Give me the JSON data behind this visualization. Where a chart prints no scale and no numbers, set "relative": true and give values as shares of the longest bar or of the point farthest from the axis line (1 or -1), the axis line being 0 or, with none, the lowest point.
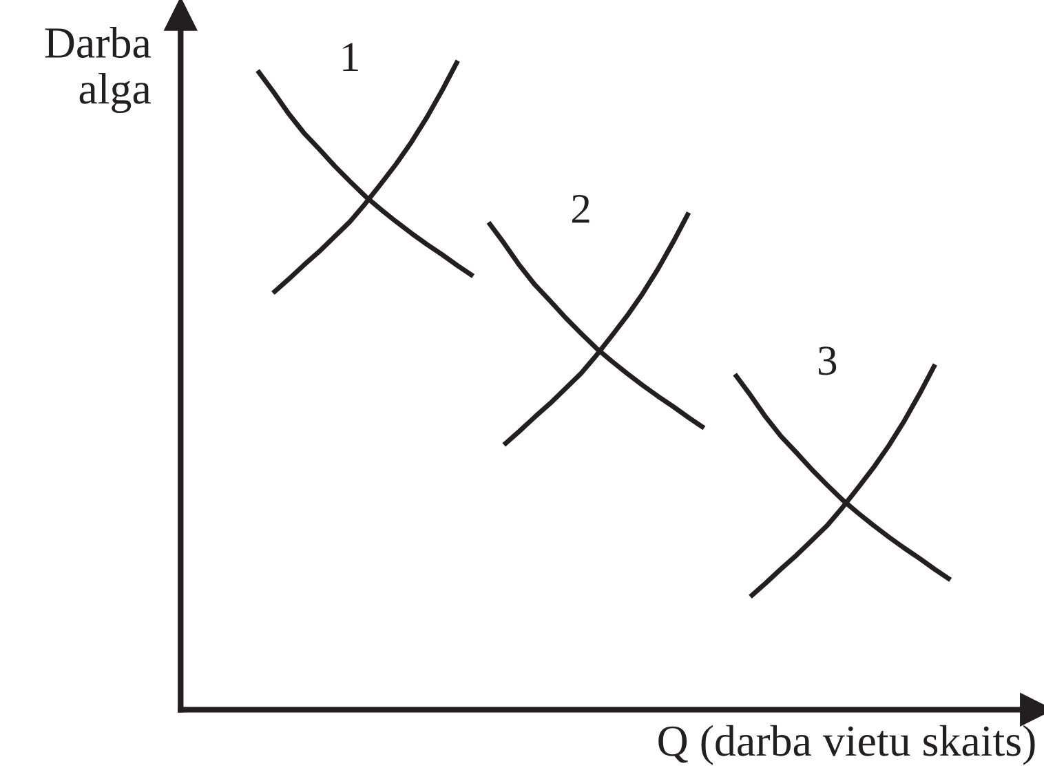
{
  "chart_data": {
    "type": "line",
    "relative": true,
    "xlabel": "Q (darba vietu skaits)",
    "ylabel": "Darba\nalga",
    "grid": false,
    "legend": false,
    "marker": "none",
    "line_style": "solid",
    "categories": [
      null,
      null,
      null,
      null,
      null,
      null,
      null,
      null,
      null,
      null,
      null,
      null,
      null,
      null,
      null,
      null,
      null,
      null,
      null,
      null,
      null,
      null,
      null,
      null,
      null,
      null,
      null,
      null,
      null,
      null,
      null,
      null,
      null,
      null,
      null,
      null,
      null,
      null,
      null,
      null,
      null,
      null,
      null,
      null,
      null,
      null,
      null,
      null,
      null,
      null
    ],
    "series": [
      {
        "color": "#231f20",
        "values": [
          null,
          null,
          null,
          null,
          0.985,
          0.953,
          0.919,
          0.889,
          0.864,
          0.838,
          0.814,
          0.791,
          0.771,
          0.752,
          0.734,
          0.717,
          0.701,
          0.684,
          0.668,
          null,
          null,
          null,
          null,
          null,
          null,
          null,
          null,
          null,
          null,
          null,
          null,
          null,
          null,
          null,
          null,
          null,
          null,
          null,
          null,
          null,
          null,
          null,
          null,
          null,
          null,
          null,
          null,
          null,
          null,
          null
        ]
      },
      {
        "color": "#231f20",
        "values": [
          null,
          null,
          null,
          null,
          null,
          0.642,
          0.663,
          0.685,
          0.706,
          0.729,
          0.752,
          0.78,
          0.81,
          0.841,
          0.875,
          0.913,
          0.955,
          1.0,
          null,
          null,
          null,
          null,
          null,
          null,
          null,
          null,
          null,
          null,
          null,
          null,
          null,
          null,
          null,
          null,
          null,
          null,
          null,
          null,
          null,
          null,
          null,
          null,
          null,
          null,
          null,
          null,
          null,
          null,
          null,
          null
        ]
      },
      {
        "color": "#231f20",
        "values": [
          null,
          null,
          null,
          null,
          null,
          null,
          null,
          null,
          null,
          null,
          null,
          null,
          null,
          null,
          null,
          null,
          null,
          null,
          null,
          0.751,
          0.719,
          0.685,
          0.655,
          0.63,
          0.604,
          0.58,
          0.557,
          0.537,
          0.518,
          0.5,
          0.483,
          0.467,
          0.45,
          0.434,
          null,
          null,
          null,
          null,
          null,
          null,
          null,
          null,
          null,
          null,
          null,
          null,
          null,
          null,
          null,
          null
        ]
      },
      {
        "color": "#231f20",
        "values": [
          null,
          null,
          null,
          null,
          null,
          null,
          null,
          null,
          null,
          null,
          null,
          null,
          null,
          null,
          null,
          null,
          null,
          null,
          null,
          null,
          0.408,
          0.429,
          0.451,
          0.472,
          0.495,
          0.518,
          0.546,
          0.576,
          0.607,
          0.641,
          0.679,
          0.721,
          0.766,
          null,
          null,
          null,
          null,
          null,
          null,
          null,
          null,
          null,
          null,
          null,
          null,
          null,
          null,
          null,
          null,
          null
        ]
      },
      {
        "color": "#231f20",
        "values": [
          null,
          null,
          null,
          null,
          null,
          null,
          null,
          null,
          null,
          null,
          null,
          null,
          null,
          null,
          null,
          null,
          null,
          null,
          null,
          null,
          null,
          null,
          null,
          null,
          null,
          null,
          null,
          null,
          null,
          null,
          null,
          null,
          null,
          null,
          null,
          0.517,
          0.485,
          0.451,
          0.421,
          0.396,
          0.37,
          0.346,
          0.323,
          0.303,
          0.284,
          0.266,
          0.249,
          0.233,
          0.216,
          0.2
        ]
      },
      {
        "color": "#231f20",
        "values": [
          null,
          null,
          null,
          null,
          null,
          null,
          null,
          null,
          null,
          null,
          null,
          null,
          null,
          null,
          null,
          null,
          null,
          null,
          null,
          null,
          null,
          null,
          null,
          null,
          null,
          null,
          null,
          null,
          null,
          null,
          null,
          null,
          null,
          null,
          null,
          null,
          0.174,
          0.195,
          0.217,
          0.238,
          0.261,
          0.284,
          0.312,
          0.342,
          0.373,
          0.407,
          0.445,
          0.487,
          0.532,
          null
        ]
      }
    ],
    "annotations": [
      "1",
      "2",
      "3"
    ]
  }
}
